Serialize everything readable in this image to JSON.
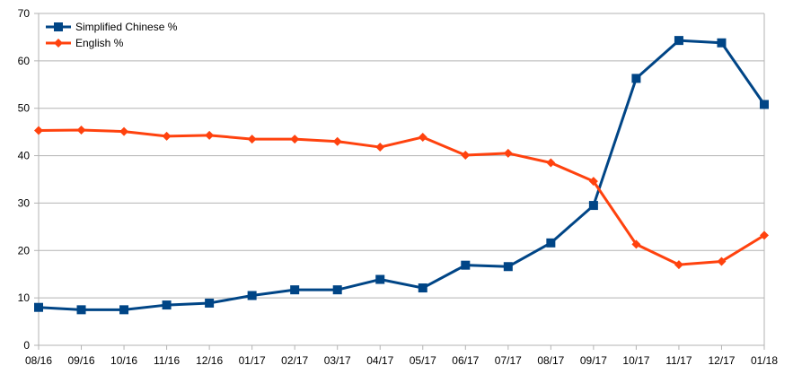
{
  "chart_data": {
    "type": "line",
    "title": "",
    "xlabel": "",
    "ylabel": "",
    "categories": [
      "08/16",
      "09/16",
      "10/16",
      "11/16",
      "12/16",
      "01/17",
      "02/17",
      "03/17",
      "04/17",
      "05/17",
      "06/17",
      "07/17",
      "08/17",
      "09/17",
      "10/17",
      "11/17",
      "12/17",
      "01/18"
    ],
    "ylim": [
      0,
      70
    ],
    "yticks": [
      0,
      10,
      20,
      30,
      40,
      50,
      60,
      70
    ],
    "grid": true,
    "legend_position": "top-left",
    "series": [
      {
        "name": "Simplified Chinese %",
        "color": "#004586",
        "marker": "square",
        "values": [
          8.0,
          7.5,
          7.5,
          8.5,
          8.9,
          10.5,
          11.7,
          11.7,
          13.9,
          12.1,
          16.9,
          16.6,
          21.6,
          29.5,
          56.3,
          64.3,
          63.8,
          50.8
        ]
      },
      {
        "name": "English %",
        "color": "#ff420e",
        "marker": "diamond",
        "values": [
          45.3,
          45.4,
          45.1,
          44.1,
          44.3,
          43.5,
          43.5,
          43.0,
          41.8,
          43.9,
          40.1,
          40.5,
          38.5,
          34.6,
          21.3,
          17.0,
          17.7,
          23.2
        ]
      }
    ]
  }
}
